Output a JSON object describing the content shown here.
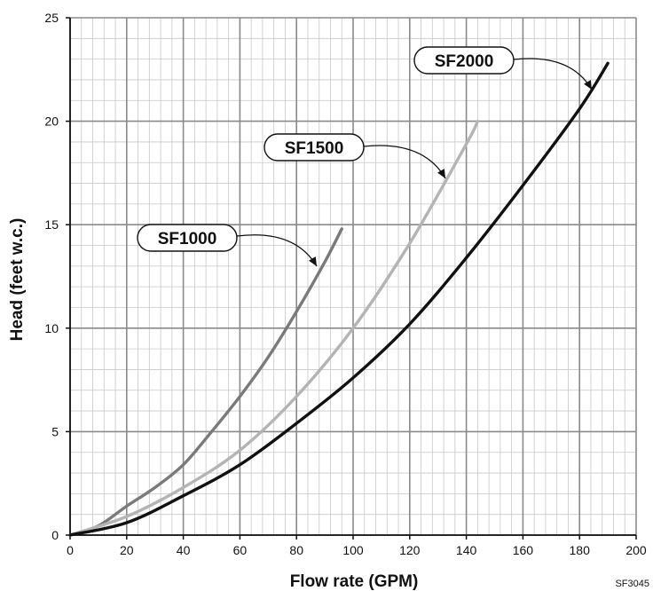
{
  "chart_data": {
    "type": "line",
    "title": "",
    "xlabel": "Flow rate (GPM)",
    "ylabel": "Head (feet w.c.)",
    "xlim": [
      0,
      200
    ],
    "ylim": [
      0,
      25
    ],
    "x_ticks": [
      0,
      20,
      40,
      60,
      80,
      100,
      120,
      140,
      160,
      180,
      200
    ],
    "y_ticks": [
      0,
      5,
      10,
      15,
      20,
      25
    ],
    "grid": true,
    "grid_minor": true,
    "legend": "none",
    "figure_code": "SF3045",
    "series": [
      {
        "name": "SF1000",
        "color": "#7a7a7a",
        "x": [
          0,
          10,
          20,
          30,
          40,
          50,
          60,
          70,
          80,
          90,
          96
        ],
        "y": [
          0,
          0.45,
          1.4,
          2.3,
          3.4,
          5.0,
          6.7,
          8.6,
          10.8,
          13.2,
          14.8
        ]
      },
      {
        "name": "SF1500",
        "color": "#b4b4b4",
        "x": [
          0,
          20,
          40,
          60,
          80,
          100,
          120,
          140,
          144
        ],
        "y": [
          0,
          0.9,
          2.3,
          4.1,
          6.7,
          10.0,
          14.1,
          18.9,
          20.0
        ]
      },
      {
        "name": "SF2000",
        "color": "#111111",
        "x": [
          0,
          20,
          40,
          60,
          80,
          100,
          120,
          140,
          160,
          180,
          190
        ],
        "y": [
          0,
          0.6,
          1.9,
          3.4,
          5.4,
          7.6,
          10.2,
          13.4,
          16.9,
          20.6,
          22.8
        ]
      }
    ],
    "annotations": [
      {
        "text": "SF1000",
        "series": "SF1000"
      },
      {
        "text": "SF1500",
        "series": "SF1500"
      },
      {
        "text": "SF2000",
        "series": "SF2000"
      }
    ]
  }
}
